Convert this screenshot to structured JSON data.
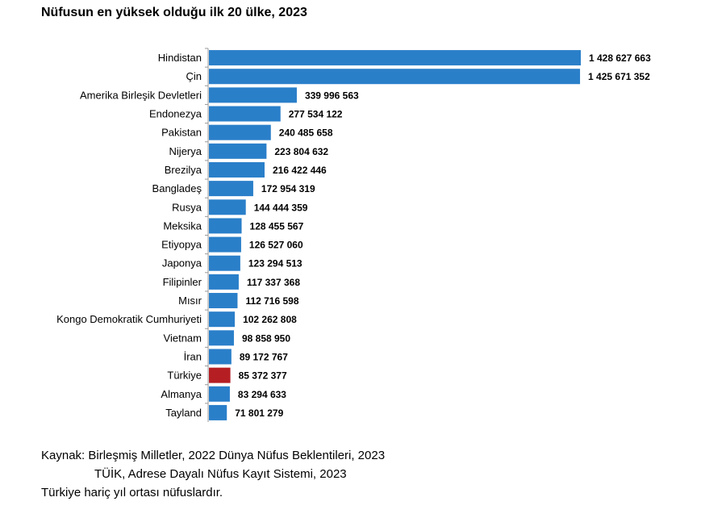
{
  "title": "Nüfusun en yüksek olduğu ilk 20 ülke, 2023",
  "notes": {
    "source_line1": "Kaynak: Birleşmiş Milletler, 2022 Dünya Nüfus Beklentileri, 2023",
    "source_line2": "TÜİK, Adrese Dayalı Nüfus Kayıt Sistemi, 2023",
    "footnote": "Türkiye hariç yıl ortası nüfuslardır."
  },
  "colors": {
    "bar": "#2a7fc9",
    "highlight": "#b51f24",
    "axis": "#999999"
  },
  "chart_data": {
    "type": "bar",
    "orientation": "horizontal",
    "categories": [
      "Hindistan",
      "Çin",
      "Amerika Birleşik Devletleri",
      "Endonezya",
      "Pakistan",
      "Nijerya",
      "Brezilya",
      "Bangladeş",
      "Rusya",
      "Meksika",
      "Etiyopya",
      "Japonya",
      "Filipinler",
      "Mısır",
      "Kongo Demokratik Cumhuriyeti",
      "Vietnam",
      "İran",
      "Türkiye",
      "Almanya",
      "Tayland"
    ],
    "values": [
      1428627663,
      1425671352,
      339996563,
      277534122,
      240485658,
      223804632,
      216422446,
      172954319,
      144444359,
      128455567,
      126527060,
      123294513,
      117337368,
      112716598,
      102262808,
      98858950,
      89172767,
      85372377,
      83294633,
      71801279
    ],
    "value_labels": [
      "1 428 627 663",
      "1 425 671 352",
      "339 996 563",
      "277 534 122",
      "240 485 658",
      "223 804 632",
      "216 422 446",
      "172 954 319",
      "144 444 359",
      "128 455 567",
      "126 527 060",
      "123 294 513",
      "117 337 368",
      "112 716 598",
      "102 262 808",
      "98 858 950",
      "89 172 767",
      "85 372 377",
      "83 294 633",
      "71 801 279"
    ],
    "highlight": "Türkiye",
    "xlim": [
      0,
      1428627663
    ],
    "grid": false,
    "legend": "none"
  }
}
